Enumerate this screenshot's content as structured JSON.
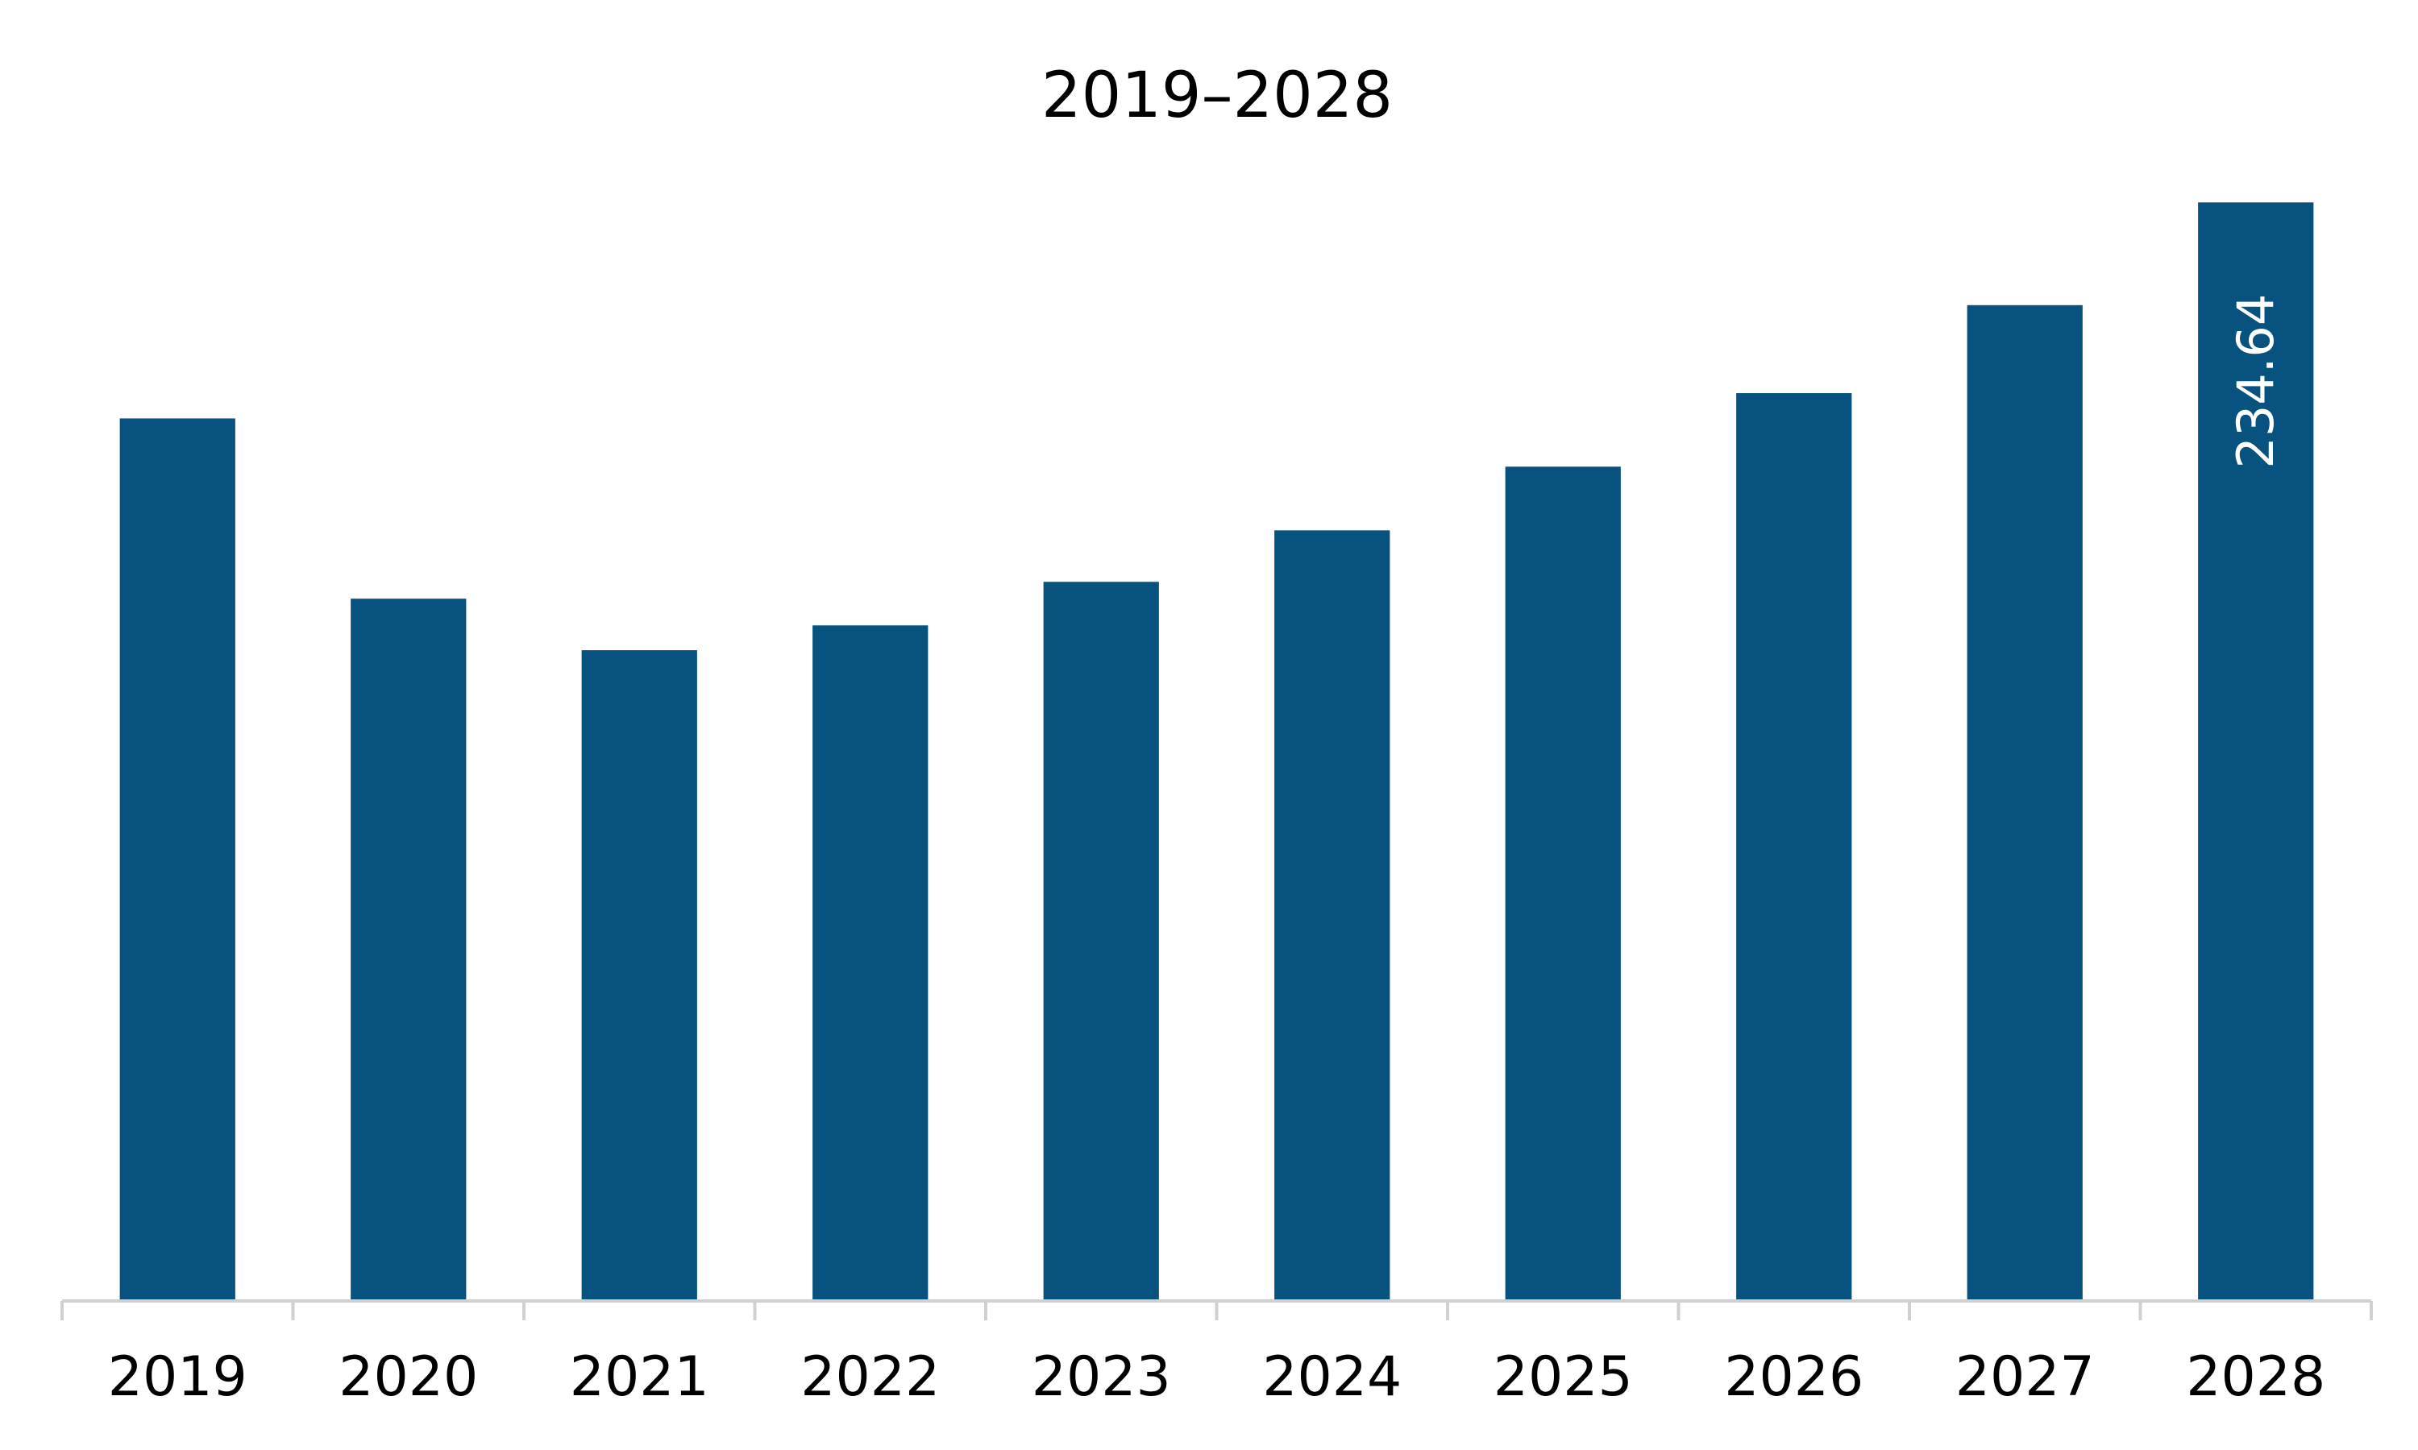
{
  "chart_data": {
    "type": "bar",
    "title": "2019–2028",
    "xlabel": "",
    "ylabel": "",
    "categories": [
      "2019",
      "2020",
      "2021",
      "2022",
      "2023",
      "2024",
      "2025",
      "2026",
      "2027",
      "2028"
    ],
    "values": [
      188.5,
      150.0,
      139.0,
      144.3,
      153.6,
      164.6,
      178.2,
      193.9,
      212.7,
      234.64
    ],
    "data_labels": [
      null,
      null,
      null,
      null,
      null,
      null,
      null,
      null,
      null,
      "234.64"
    ],
    "ylim": [
      0,
      250
    ],
    "grid": false,
    "legend": "none",
    "colors": {
      "bar": "#08527f",
      "axis": "#d0d0d0"
    }
  }
}
